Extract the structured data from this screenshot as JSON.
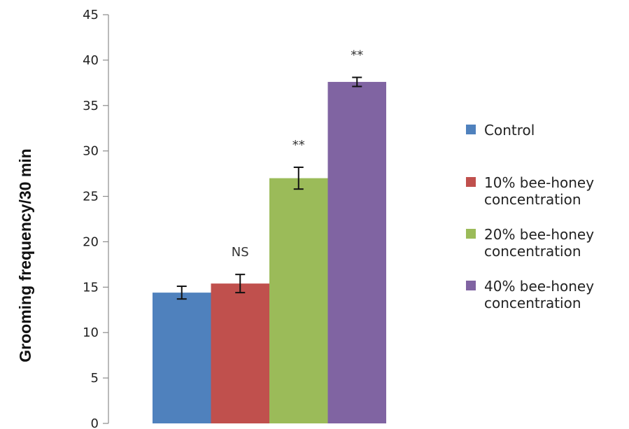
{
  "chart_data": {
    "type": "bar",
    "title": "",
    "xlabel": "",
    "ylabel": "Grooming frequency/30 min",
    "ylim": [
      0,
      45
    ],
    "yticks": [
      0,
      5,
      10,
      15,
      20,
      25,
      30,
      35,
      40,
      45
    ],
    "grid": false,
    "legend_position": "right",
    "series": [
      {
        "name": "Control",
        "legend_lines": [
          "Control"
        ],
        "value": 14.4,
        "error": 0.7,
        "annotation": "",
        "color": "#4F81BD"
      },
      {
        "name": "10% bee-honey concentration",
        "legend_lines": [
          "10% bee-honey",
          "concentration"
        ],
        "value": 15.4,
        "error": 1.0,
        "annotation": "NS",
        "color": "#C0504D"
      },
      {
        "name": "20% bee-honey concentration",
        "legend_lines": [
          "20% bee-honey",
          "concentration"
        ],
        "value": 27.0,
        "error": 1.2,
        "annotation": "**",
        "color": "#9BBB59"
      },
      {
        "name": "40% bee-honey concentration",
        "legend_lines": [
          "40% bee-honey",
          "concentration"
        ],
        "value": 37.6,
        "error": 0.5,
        "annotation": "**",
        "color": "#8064A2"
      }
    ]
  }
}
